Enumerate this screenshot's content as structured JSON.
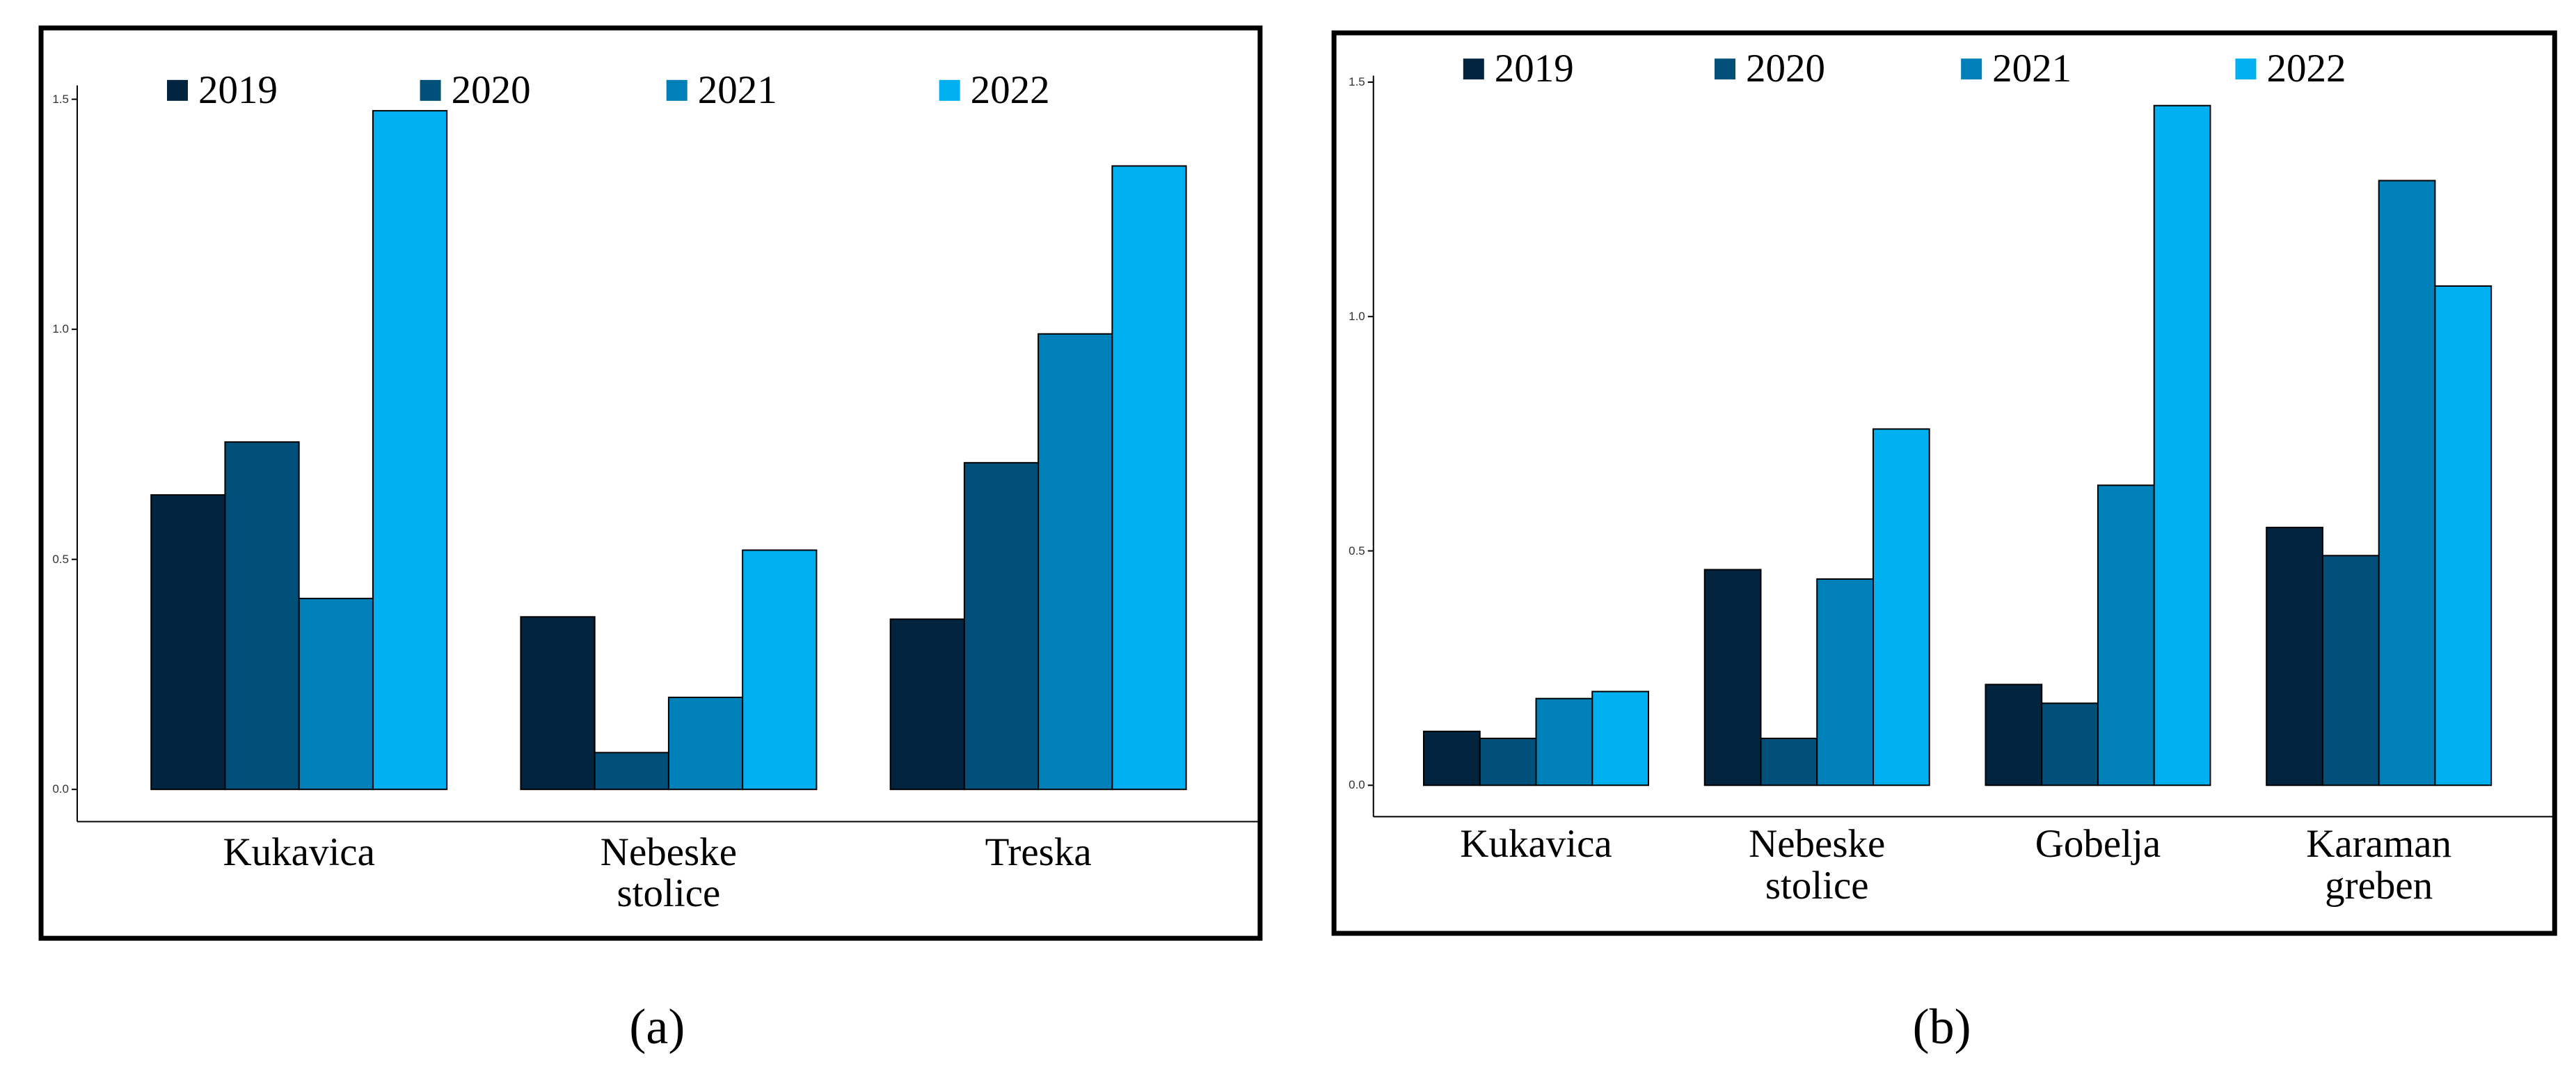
{
  "chart_data": [
    {
      "type": "bar",
      "caption": "(a)",
      "categories": [
        "Kukavica",
        "Nebeske\nstolice",
        "Treska"
      ],
      "series": [
        {
          "name": "2019",
          "color": "#02243f",
          "values": [
            0.64,
            0.375,
            0.37
          ]
        },
        {
          "name": "2020",
          "color": "#00507a",
          "values": [
            0.755,
            0.08,
            0.71
          ]
        },
        {
          "name": "2021",
          "color": "#0080b8",
          "values": [
            0.415,
            0.2,
            0.99
          ]
        },
        {
          "name": "2022",
          "color": "#00b0f0",
          "values": [
            1.475,
            0.52,
            1.355
          ]
        }
      ],
      "ylim": [
        -0.07,
        1.53
      ],
      "yticks": [
        {
          "value": 0,
          "label": "0.0"
        },
        {
          "value": 0.5,
          "label": "0.5"
        },
        {
          "value": 1,
          "label": "1.0"
        },
        {
          "value": 1.5,
          "label": "1.5"
        }
      ]
    },
    {
      "type": "bar",
      "caption": "(b)",
      "categories": [
        "Kukavica",
        "Nebeske\nstolice",
        "Gobelja",
        "Karaman\ngreben"
      ],
      "series": [
        {
          "name": "2019",
          "color": "#02243f",
          "values": [
            0.115,
            0.46,
            0.215,
            0.55
          ]
        },
        {
          "name": "2020",
          "color": "#00507a",
          "values": [
            0.1,
            0.1,
            0.175,
            0.49
          ]
        },
        {
          "name": "2021",
          "color": "#0080b8",
          "values": [
            0.185,
            0.44,
            0.64,
            1.29
          ]
        },
        {
          "name": "2022",
          "color": "#00b0f0",
          "values": [
            0.2,
            0.76,
            1.45,
            1.065
          ]
        }
      ],
      "ylim": [
        -0.067,
        1.514
      ],
      "yticks": [
        {
          "value": 0,
          "label": "0.0"
        },
        {
          "value": 0.5,
          "label": "0.5"
        },
        {
          "value": 1,
          "label": "1.0"
        },
        {
          "value": 1.5,
          "label": "1.5"
        }
      ]
    }
  ]
}
